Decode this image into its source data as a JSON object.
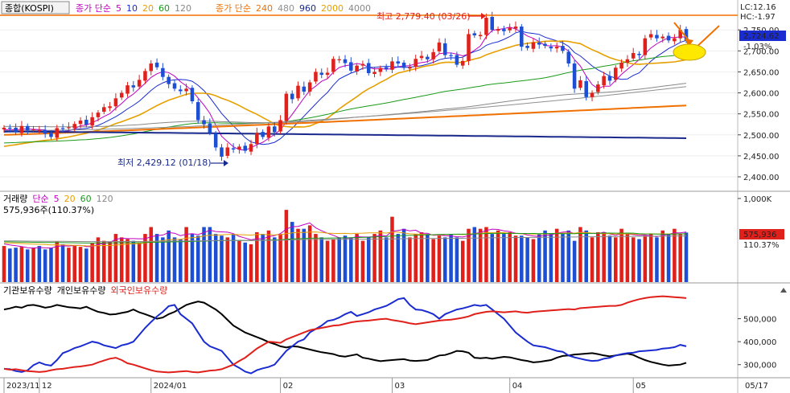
{
  "colors": {
    "up": "#e0201b",
    "down": "#1c4fd4",
    "ma5": "#c000c0",
    "ma10": "#1a2cd0",
    "ma20": "#e6a000",
    "ma60": "#1a9a1a",
    "ma120": "#888888",
    "ma240": "#f07000",
    "ma480": "#909090",
    "ma960": "#1a2a8c",
    "hline": "#f07000",
    "vol_ma5": "#c000c0",
    "vol_ma20": "#e6a000",
    "vol_ma60": "#1a9a1a",
    "vol_ma120": "#888888",
    "inst": "#1a2cd0",
    "indiv": "#000000",
    "foreign": "#e0201b",
    "annot_arrow": "#f07000",
    "circle": "#ffe800"
  },
  "price_panel": {
    "title_btn": "종합(KOSPI)",
    "legend1": [
      {
        "text": "종가 단순",
        "color": "#c000c0"
      },
      {
        "text": "5",
        "color": "#c000c0"
      },
      {
        "text": "10",
        "color": "#1a2cd0"
      },
      {
        "text": "20",
        "color": "#e6a000"
      },
      {
        "text": "60",
        "color": "#1a9a1a"
      },
      {
        "text": "120",
        "color": "#888888"
      }
    ],
    "legend2": [
      {
        "text": "종가 단순",
        "color": "#f07000"
      },
      {
        "text": "240",
        "color": "#f07000"
      },
      {
        "text": "480",
        "color": "#909090"
      },
      {
        "text": "960",
        "color": "#1a2a8c"
      },
      {
        "text": "2000",
        "color": "#e6a000"
      },
      {
        "text": "4000",
        "color": "#888888"
      }
    ],
    "high_label": "최고 2,779.40 (03/26)",
    "low_label": "최저 2,429.12 (01/18)",
    "lc_label": "LC:12.16",
    "hc_label": "HC:-1.97",
    "current_value": "2,724.62",
    "current_change": "-1.03%",
    "y_ticks": [
      "2,750.00",
      "2,700.00",
      "2,650.00",
      "2,600.00",
      "2,550.00",
      "2,500.00",
      "2,450.00",
      "2,400.00"
    ]
  },
  "volume_panel": {
    "legend": [
      {
        "text": "거래량",
        "color": "#000000"
      },
      {
        "text": "단순",
        "color": "#c000c0"
      },
      {
        "text": "5",
        "color": "#c000c0"
      },
      {
        "text": "20",
        "color": "#e6a000"
      },
      {
        "text": "60",
        "color": "#1a9a1a"
      },
      {
        "text": "120",
        "color": "#888888"
      }
    ],
    "info": "575,936주(110.37%)",
    "y_tick_top": "1,000K",
    "current_value": "575,936",
    "current_pct": "110.37%"
  },
  "holdings_panel": {
    "legend": [
      {
        "text": "기관보유수량",
        "color": "#000000"
      },
      {
        "text": "개인보유수량",
        "color": "#000000"
      },
      {
        "text": "외국인보유수량",
        "color": "#e0201b"
      }
    ],
    "y_ticks": [
      "500,000",
      "400,000",
      "300,000"
    ]
  },
  "x_axis": {
    "labels": [
      "2023/11",
      "12",
      "2024/01",
      "02",
      "03",
      "04",
      "05"
    ],
    "right_label": "05/17"
  },
  "chart_data": {
    "type": "candlestick",
    "dates": [
      "2023/11/23",
      "2023/11/24",
      "2023/11/27",
      "2023/11/28",
      "2023/11/29",
      "2023/11/30",
      "2023/12/01",
      "2023/12/04",
      "2023/12/05",
      "2023/12/06",
      "2023/12/07",
      "2023/12/08",
      "2023/12/11",
      "2023/12/12",
      "2023/12/13",
      "2023/12/14",
      "2023/12/15",
      "2023/12/18",
      "2023/12/19",
      "2023/12/20",
      "2023/12/21",
      "2023/12/22",
      "2023/12/26",
      "2023/12/27",
      "2023/12/28",
      "2024/01/02",
      "2024/01/03",
      "2024/01/04",
      "2024/01/05",
      "2024/01/08",
      "2024/01/09",
      "2024/01/10",
      "2024/01/11",
      "2024/01/12",
      "2024/01/15",
      "2024/01/16",
      "2024/01/17",
      "2024/01/18",
      "2024/01/19",
      "2024/01/22",
      "2024/01/23",
      "2024/01/24",
      "2024/01/25",
      "2024/01/26",
      "2024/01/29",
      "2024/01/30",
      "2024/01/31",
      "2024/02/01",
      "2024/02/02",
      "2024/02/05",
      "2024/02/06",
      "2024/02/07",
      "2024/02/08",
      "2024/02/13",
      "2024/02/14",
      "2024/02/15",
      "2024/02/16",
      "2024/02/19",
      "2024/02/20",
      "2024/02/21",
      "2024/02/22",
      "2024/02/23",
      "2024/02/26",
      "2024/02/27",
      "2024/02/28",
      "2024/02/29",
      "2024/03/04",
      "2024/03/05",
      "2024/03/06",
      "2024/03/07",
      "2024/03/08",
      "2024/03/11",
      "2024/03/12",
      "2024/03/13",
      "2024/03/14",
      "2024/03/15",
      "2024/03/18",
      "2024/03/19",
      "2024/03/20",
      "2024/03/21",
      "2024/03/22",
      "2024/03/25",
      "2024/03/26",
      "2024/03/27",
      "2024/03/28",
      "2024/03/29",
      "2024/04/01",
      "2024/04/02",
      "2024/04/03",
      "2024/04/04",
      "2024/04/05",
      "2024/04/08",
      "2024/04/09",
      "2024/04/11",
      "2024/04/12",
      "2024/04/15",
      "2024/04/16",
      "2024/04/17",
      "2024/04/18",
      "2024/04/19",
      "2024/04/22",
      "2024/04/23",
      "2024/04/24",
      "2024/04/25",
      "2024/04/26",
      "2024/04/29",
      "2024/04/30",
      "2024/05/02",
      "2024/05/03",
      "2024/05/07",
      "2024/05/08",
      "2024/05/09",
      "2024/05/10",
      "2024/05/13",
      "2024/05/14",
      "2024/05/16",
      "2024/05/17"
    ],
    "close": [
      2517,
      2515,
      2506,
      2521,
      2511,
      2513,
      2511,
      2503,
      2495,
      2516,
      2515,
      2518,
      2526,
      2534,
      2524,
      2542,
      2553,
      2566,
      2568,
      2587,
      2600,
      2618,
      2613,
      2631,
      2652,
      2670,
      2661,
      2638,
      2621,
      2610,
      2604,
      2610,
      2580,
      2535,
      2525,
      2505,
      2470,
      2448,
      2470,
      2465,
      2472,
      2462,
      2478,
      2505,
      2495,
      2520,
      2506,
      2535,
      2598,
      2585,
      2617,
      2603,
      2625,
      2650,
      2643,
      2648,
      2681,
      2680,
      2671,
      2653,
      2665,
      2669,
      2647,
      2650,
      2659,
      2657,
      2675,
      2670,
      2660,
      2662,
      2681,
      2688,
      2680,
      2697,
      2720,
      2690,
      2688,
      2667,
      2676,
      2740,
      2737,
      2738,
      2779,
      2750,
      2752,
      2747,
      2755,
      2758,
      2710,
      2707,
      2720,
      2715,
      2712,
      2706,
      2710,
      2700,
      2670,
      2610,
      2630,
      2590,
      2600,
      2620,
      2640,
      2629,
      2660,
      2672,
      2680,
      2695,
      2690,
      2730,
      2740,
      2730,
      2734,
      2725,
      2730,
      2750,
      2725
    ],
    "volume_k": [
      420,
      390,
      400,
      410,
      380,
      400,
      420,
      380,
      400,
      470,
      440,
      400,
      420,
      410,
      390,
      450,
      520,
      480,
      470,
      560,
      520,
      500,
      480,
      460,
      560,
      640,
      560,
      520,
      600,
      520,
      500,
      640,
      560,
      540,
      640,
      640,
      560,
      540,
      520,
      560,
      480,
      460,
      440,
      580,
      560,
      600,
      520,
      560,
      840,
      700,
      620,
      620,
      660,
      560,
      520,
      480,
      500,
      520,
      540,
      520,
      560,
      480,
      520,
      560,
      600,
      520,
      760,
      560,
      620,
      520,
      560,
      580,
      560,
      500,
      540,
      520,
      560,
      520,
      480,
      620,
      640,
      620,
      640,
      560,
      600,
      560,
      580,
      540,
      540,
      520,
      500,
      560,
      600,
      560,
      620,
      560,
      600,
      480,
      640,
      600,
      520,
      580,
      560,
      540,
      520,
      620,
      560,
      520,
      500,
      540,
      560,
      520,
      600,
      560,
      620,
      560,
      576
    ],
    "ma_lines": [
      "MA5",
      "MA10",
      "MA20",
      "MA60",
      "MA120",
      "MA240",
      "MA480",
      "MA960"
    ],
    "volume_ylim": [
      0,
      1000
    ],
    "holdings": {
      "series": [
        {
          "name": "기관보유수량",
          "values": [
            540,
            545,
            552,
            548,
            558,
            560,
            555,
            548,
            552,
            560,
            555,
            550,
            548,
            545,
            552,
            540,
            530,
            525,
            518,
            520,
            525,
            530,
            540,
            528,
            520,
            510,
            500,
            505,
            520,
            530,
            545,
            560,
            568,
            575,
            570,
            555,
            540,
            520,
            495,
            470,
            455,
            440,
            430,
            420,
            410,
            398,
            390,
            380,
            375,
            380,
            378,
            372,
            366,
            360,
            354,
            350,
            346,
            338,
            335,
            340,
            345,
            330,
            326,
            320,
            315,
            318,
            320,
            322,
            324,
            318,
            316,
            318,
            320,
            330,
            340,
            342,
            350,
            360,
            358,
            352,
            330,
            328,
            330,
            326,
            330,
            334,
            332,
            326,
            320,
            316,
            310,
            312,
            316,
            320,
            330,
            338,
            340,
            344,
            346,
            348,
            350,
            346,
            340,
            336,
            340,
            344,
            348,
            342,
            330,
            320,
            312,
            306,
            300,
            296,
            298,
            300,
            308
          ]
        },
        {
          "name": "개인보유수량",
          "values": [
            282,
            280,
            272,
            268,
            275,
            298,
            310,
            300,
            296,
            320,
            350,
            360,
            372,
            380,
            390,
            400,
            395,
            384,
            378,
            372,
            384,
            390,
            400,
            430,
            460,
            486,
            510,
            530,
            555,
            560,
            520,
            500,
            480,
            440,
            400,
            380,
            370,
            360,
            330,
            300,
            286,
            270,
            262,
            276,
            284,
            290,
            300,
            330,
            360,
            380,
            400,
            410,
            440,
            455,
            470,
            490,
            495,
            505,
            520,
            530,
            512,
            520,
            528,
            540,
            548,
            556,
            570,
            585,
            590,
            560,
            540,
            538,
            530,
            520,
            500,
            520,
            530,
            540,
            545,
            552,
            560,
            556,
            560,
            540,
            520,
            500,
            470,
            440,
            420,
            400,
            384,
            380,
            376,
            368,
            360,
            356,
            340,
            332,
            326,
            320,
            316,
            318,
            326,
            330,
            340,
            346,
            350,
            352,
            358,
            360,
            362,
            364,
            370,
            372,
            376,
            386,
            380
          ]
        },
        {
          "name": "외국인보유수량",
          "values": [
            282,
            278,
            280,
            276,
            272,
            270,
            268,
            270,
            276,
            280,
            282,
            286,
            290,
            292,
            296,
            300,
            310,
            318,
            326,
            330,
            320,
            306,
            300,
            292,
            284,
            276,
            270,
            268,
            266,
            268,
            270,
            272,
            268,
            266,
            270,
            274,
            276,
            280,
            290,
            300,
            316,
            330,
            350,
            370,
            385,
            400,
            398,
            395,
            410,
            420,
            430,
            440,
            450,
            455,
            460,
            465,
            470,
            472,
            478,
            484,
            488,
            490,
            492,
            495,
            498,
            500,
            494,
            490,
            486,
            480,
            476,
            480,
            484,
            488,
            492,
            494,
            496,
            500,
            504,
            510,
            520,
            525,
            530,
            532,
            530,
            528,
            530,
            532,
            528,
            526,
            530,
            532,
            534,
            536,
            538,
            540,
            542,
            540,
            546,
            548,
            550,
            552,
            554,
            556,
            556,
            560,
            570,
            578,
            585,
            590,
            594,
            596,
            598,
            596,
            594,
            592,
            590
          ]
        }
      ]
    }
  }
}
